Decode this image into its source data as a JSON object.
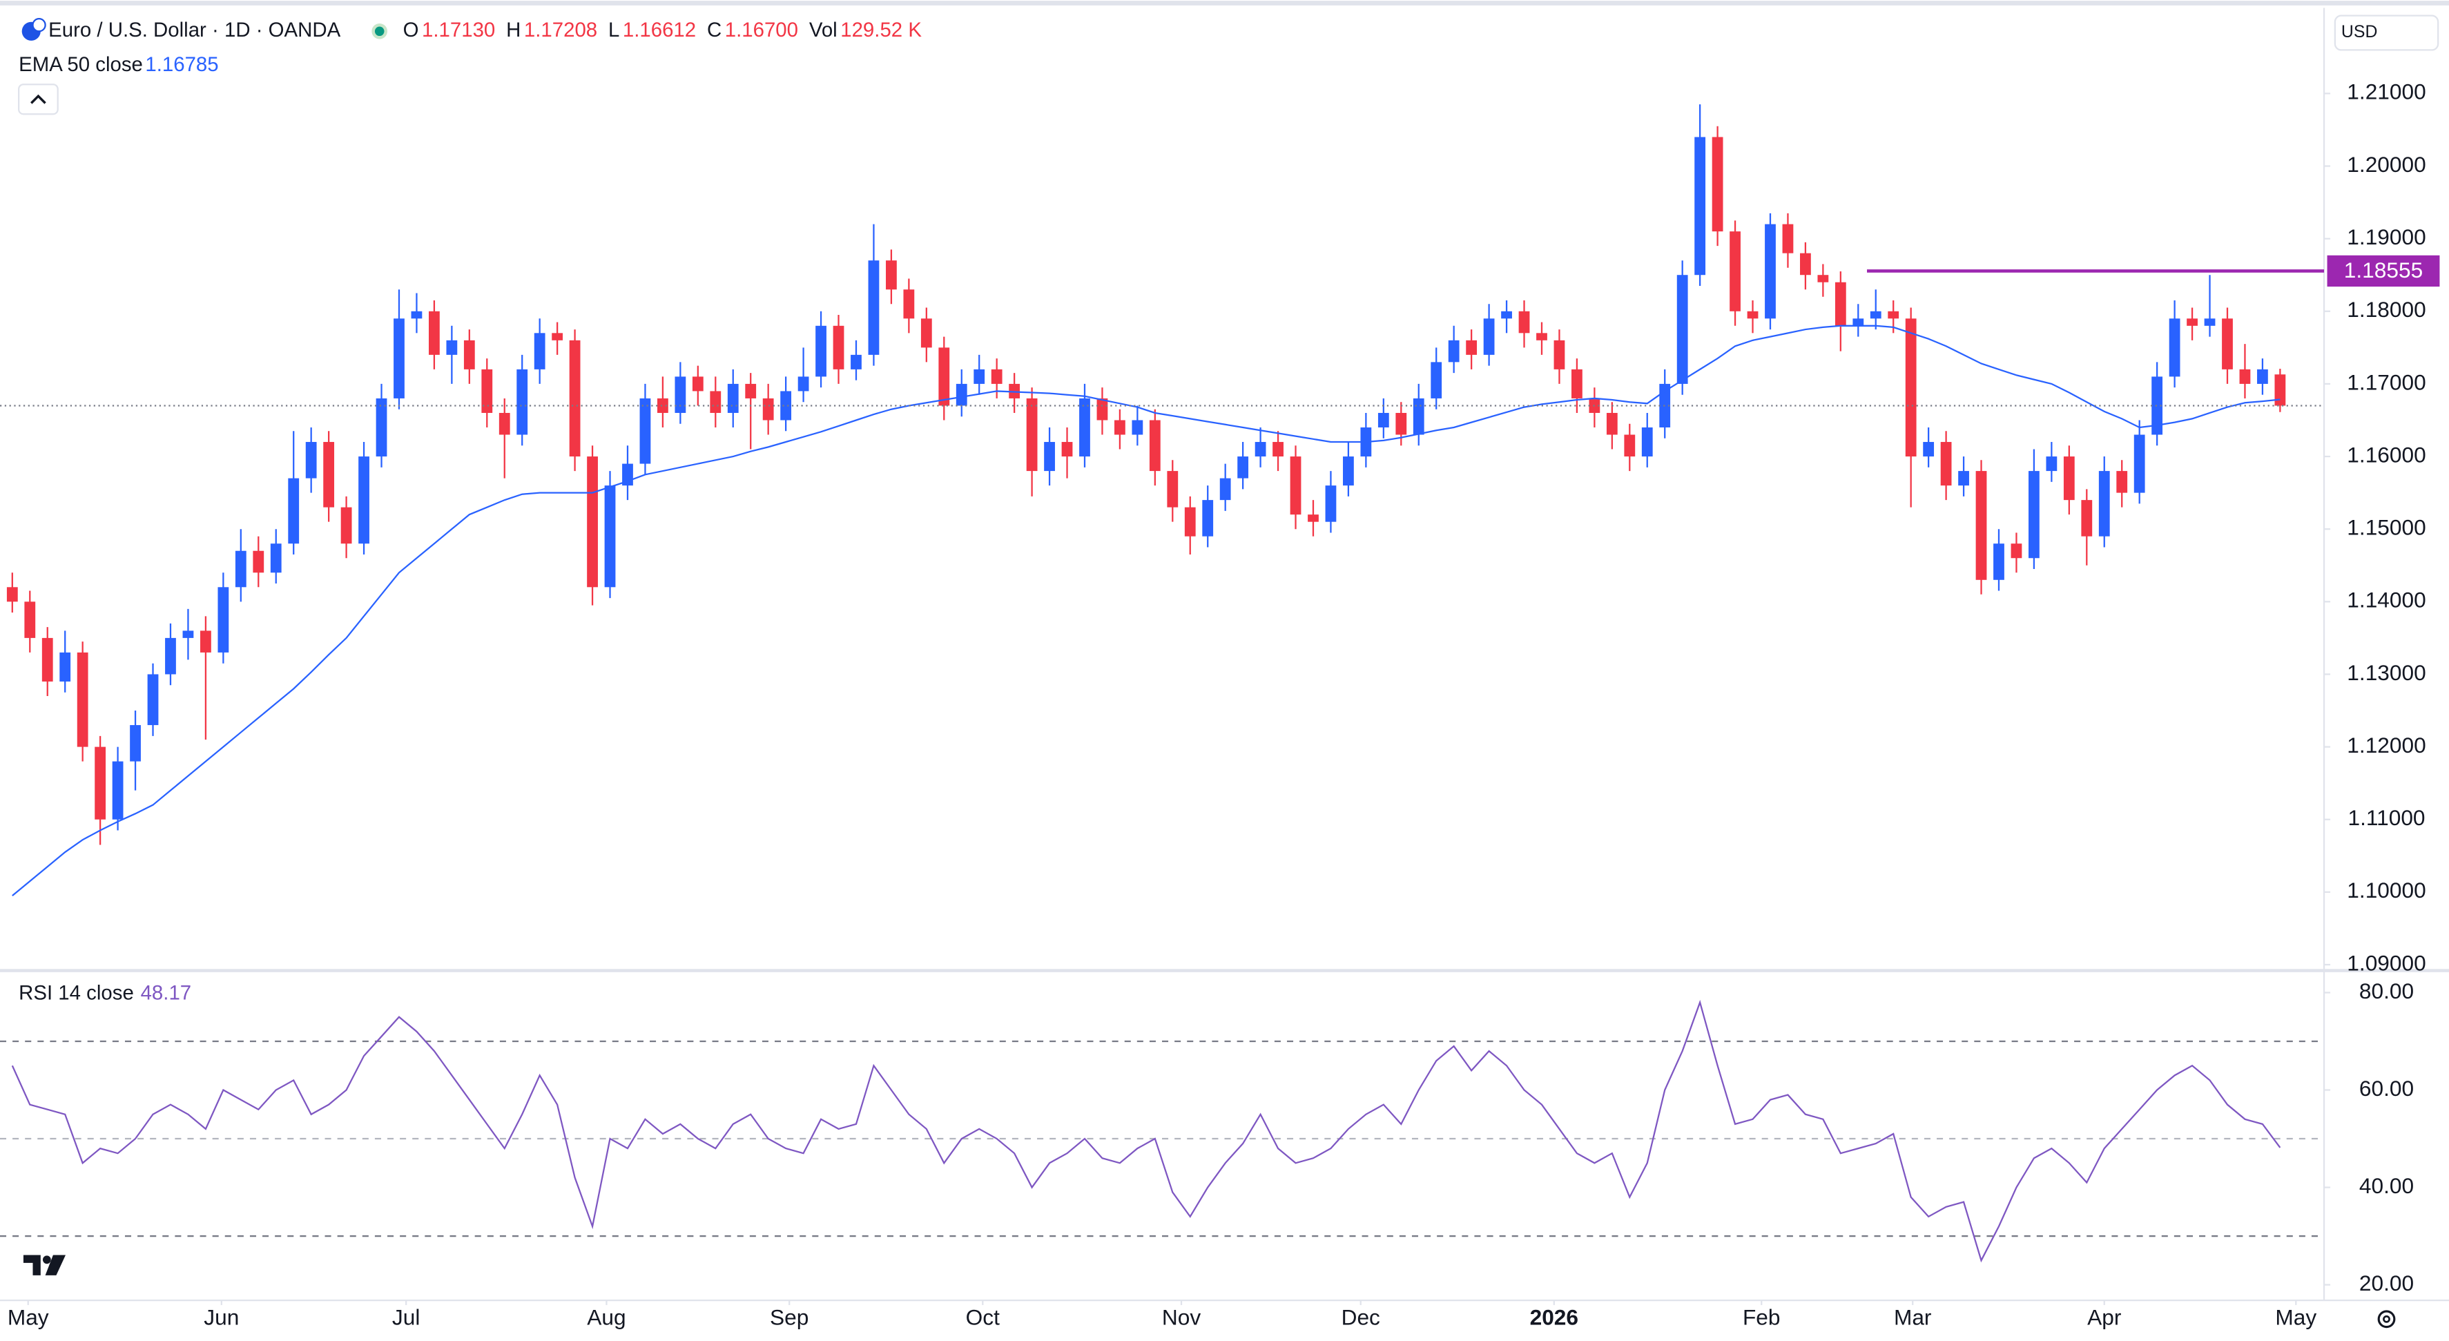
{
  "chart_data": [
    {
      "type": "candlestick",
      "title": "Euro / U.S. Dollar · 1D · OANDA",
      "fields": [
        {
          "label": "O",
          "value": "1.17130"
        },
        {
          "label": "H",
          "value": "1.17208"
        },
        {
          "label": "L",
          "value": "1.16612"
        },
        {
          "label": "C",
          "value": "1.16700"
        },
        {
          "label": "Vol",
          "value": "129.52 K"
        }
      ],
      "currency": "USD",
      "up_color": "#2962ff",
      "down_color": "#f23645",
      "open": [
        1.142,
        1.14,
        1.135,
        1.129,
        1.133,
        1.12,
        1.11,
        1.118,
        1.123,
        1.13,
        1.135,
        1.136,
        1.133,
        1.142,
        1.147,
        1.144,
        1.148,
        1.157,
        1.162,
        1.153,
        1.148,
        1.16,
        1.168,
        1.179,
        1.18,
        1.174,
        1.176,
        1.172,
        1.166,
        1.163,
        1.172,
        1.177,
        1.176,
        1.16,
        1.142,
        1.156,
        1.159,
        1.168,
        1.166,
        1.171,
        1.169,
        1.166,
        1.17,
        1.168,
        1.165,
        1.169,
        1.171,
        1.178,
        1.172,
        1.174,
        1.187,
        1.183,
        1.179,
        1.175,
        1.167,
        1.17,
        1.172,
        1.17,
        1.168,
        1.158,
        1.162,
        1.16,
        1.168,
        1.165,
        1.163,
        1.165,
        1.158,
        1.153,
        1.149,
        1.154,
        1.157,
        1.16,
        1.162,
        1.16,
        1.152,
        1.151,
        1.156,
        1.16,
        1.164,
        1.166,
        1.163,
        1.168,
        1.173,
        1.176,
        1.174,
        1.179,
        1.18,
        1.177,
        1.176,
        1.172,
        1.168,
        1.166,
        1.163,
        1.16,
        1.164,
        1.17,
        1.185,
        1.204,
        1.191,
        1.18,
        1.179,
        1.192,
        1.188,
        1.185,
        1.184,
        1.178,
        1.179,
        1.18,
        1.179,
        1.16,
        1.162,
        1.156,
        1.158,
        1.143,
        1.148,
        1.146,
        1.158,
        1.16,
        1.154,
        1.149,
        1.158,
        1.155,
        1.163,
        1.171,
        1.179,
        1.178,
        1.179,
        1.172,
        1.17,
        1.1713
      ],
      "high": [
        1.144,
        1.1415,
        1.1365,
        1.136,
        1.1345,
        1.1215,
        1.12,
        1.125,
        1.1315,
        1.137,
        1.139,
        1.138,
        1.144,
        1.15,
        1.149,
        1.15,
        1.1635,
        1.164,
        1.1635,
        1.1545,
        1.162,
        1.17,
        1.183,
        1.1825,
        1.1815,
        1.178,
        1.1775,
        1.1735,
        1.168,
        1.174,
        1.179,
        1.1785,
        1.1775,
        1.1615,
        1.158,
        1.1615,
        1.17,
        1.171,
        1.173,
        1.1725,
        1.171,
        1.172,
        1.1715,
        1.17,
        1.171,
        1.175,
        1.18,
        1.1795,
        1.176,
        1.192,
        1.1885,
        1.1845,
        1.1805,
        1.1765,
        1.172,
        1.174,
        1.1735,
        1.1715,
        1.1695,
        1.164,
        1.164,
        1.17,
        1.1695,
        1.1665,
        1.167,
        1.1665,
        1.1595,
        1.1545,
        1.156,
        1.159,
        1.162,
        1.164,
        1.1635,
        1.1615,
        1.154,
        1.158,
        1.162,
        1.166,
        1.168,
        1.1675,
        1.17,
        1.175,
        1.178,
        1.1775,
        1.181,
        1.1815,
        1.1815,
        1.1785,
        1.1775,
        1.1735,
        1.1695,
        1.1675,
        1.1645,
        1.166,
        1.172,
        1.187,
        1.2085,
        1.2055,
        1.1925,
        1.1815,
        1.1935,
        1.1935,
        1.1895,
        1.1865,
        1.1855,
        1.181,
        1.183,
        1.1815,
        1.1805,
        1.164,
        1.1635,
        1.16,
        1.1595,
        1.15,
        1.1495,
        1.161,
        1.162,
        1.1615,
        1.1555,
        1.16,
        1.1595,
        1.165,
        1.173,
        1.1815,
        1.1805,
        1.185,
        1.1805,
        1.1755,
        1.1735,
        1.17208
      ],
      "low": [
        1.1385,
        1.133,
        1.127,
        1.1275,
        1.118,
        1.1065,
        1.1085,
        1.114,
        1.1215,
        1.1285,
        1.132,
        1.121,
        1.1315,
        1.14,
        1.142,
        1.1425,
        1.1465,
        1.155,
        1.151,
        1.146,
        1.1465,
        1.1585,
        1.1665,
        1.177,
        1.172,
        1.17,
        1.17,
        1.164,
        1.157,
        1.1615,
        1.17,
        1.174,
        1.158,
        1.1395,
        1.1405,
        1.154,
        1.1575,
        1.164,
        1.1645,
        1.167,
        1.164,
        1.164,
        1.161,
        1.163,
        1.1635,
        1.1675,
        1.1695,
        1.17,
        1.1705,
        1.1725,
        1.181,
        1.177,
        1.173,
        1.165,
        1.1655,
        1.1685,
        1.168,
        1.166,
        1.1545,
        1.156,
        1.157,
        1.1585,
        1.163,
        1.161,
        1.1615,
        1.156,
        1.151,
        1.1465,
        1.1475,
        1.1525,
        1.1555,
        1.1585,
        1.158,
        1.15,
        1.149,
        1.1495,
        1.1545,
        1.1585,
        1.1625,
        1.1615,
        1.1615,
        1.1665,
        1.1715,
        1.172,
        1.1725,
        1.177,
        1.175,
        1.174,
        1.17,
        1.166,
        1.164,
        1.161,
        1.158,
        1.1585,
        1.1625,
        1.1685,
        1.1835,
        1.189,
        1.178,
        1.177,
        1.1775,
        1.186,
        1.183,
        1.182,
        1.1745,
        1.1765,
        1.1775,
        1.177,
        1.153,
        1.1585,
        1.154,
        1.1545,
        1.141,
        1.1415,
        1.144,
        1.1445,
        1.1565,
        1.152,
        1.145,
        1.1475,
        1.153,
        1.1535,
        1.1615,
        1.1695,
        1.176,
        1.1765,
        1.17,
        1.168,
        1.1685,
        1.16612
      ],
      "close": [
        1.14,
        1.135,
        1.129,
        1.133,
        1.12,
        1.11,
        1.118,
        1.123,
        1.13,
        1.135,
        1.136,
        1.133,
        1.142,
        1.147,
        1.144,
        1.148,
        1.157,
        1.162,
        1.153,
        1.148,
        1.16,
        1.168,
        1.179,
        1.18,
        1.174,
        1.176,
        1.172,
        1.166,
        1.163,
        1.172,
        1.177,
        1.176,
        1.16,
        1.142,
        1.156,
        1.159,
        1.168,
        1.166,
        1.171,
        1.169,
        1.166,
        1.17,
        1.168,
        1.165,
        1.169,
        1.171,
        1.178,
        1.172,
        1.174,
        1.187,
        1.183,
        1.179,
        1.175,
        1.167,
        1.17,
        1.172,
        1.17,
        1.168,
        1.158,
        1.162,
        1.16,
        1.168,
        1.165,
        1.163,
        1.165,
        1.158,
        1.153,
        1.149,
        1.154,
        1.157,
        1.16,
        1.162,
        1.16,
        1.152,
        1.151,
        1.156,
        1.16,
        1.164,
        1.166,
        1.163,
        1.168,
        1.173,
        1.176,
        1.174,
        1.179,
        1.18,
        1.177,
        1.176,
        1.172,
        1.168,
        1.166,
        1.163,
        1.16,
        1.164,
        1.17,
        1.185,
        1.204,
        1.191,
        1.18,
        1.179,
        1.192,
        1.188,
        1.185,
        1.184,
        1.178,
        1.179,
        1.18,
        1.179,
        1.16,
        1.162,
        1.156,
        1.158,
        1.143,
        1.148,
        1.146,
        1.158,
        1.16,
        1.154,
        1.149,
        1.158,
        1.155,
        1.163,
        1.171,
        1.179,
        1.178,
        1.179,
        1.172,
        1.17,
        1.172,
        1.167
      ],
      "overlays": [
        {
          "name": "EMA 50 close",
          "value_label": "1.16785",
          "color": "#2962ff",
          "values": [
            1.0995,
            1.1015,
            1.1035,
            1.1055,
            1.1072,
            1.1085,
            1.1097,
            1.1108,
            1.112,
            1.114,
            1.116,
            1.118,
            1.12,
            1.122,
            1.124,
            1.126,
            1.128,
            1.1303,
            1.1327,
            1.135,
            1.138,
            1.141,
            1.144,
            1.146,
            1.148,
            1.15,
            1.152,
            1.153,
            1.154,
            1.1548,
            1.155,
            1.155,
            1.155,
            1.155,
            1.1558,
            1.1566,
            1.1575,
            1.158,
            1.1585,
            1.159,
            1.1595,
            1.16,
            1.1607,
            1.1613,
            1.162,
            1.1627,
            1.1634,
            1.1642,
            1.165,
            1.1658,
            1.1665,
            1.167,
            1.1674,
            1.1678,
            1.1682,
            1.1686,
            1.169,
            1.1689,
            1.1688,
            1.1687,
            1.1685,
            1.1683,
            1.1678,
            1.1673,
            1.1668,
            1.166,
            1.1656,
            1.1652,
            1.1648,
            1.1644,
            1.164,
            1.1636,
            1.1632,
            1.1628,
            1.1624,
            1.162,
            1.162,
            1.162,
            1.1622,
            1.1626,
            1.1631,
            1.1636,
            1.164,
            1.1647,
            1.1654,
            1.1661,
            1.1668,
            1.1672,
            1.1675,
            1.1678,
            1.168,
            1.1678,
            1.1675,
            1.1673,
            1.169,
            1.1705,
            1.172,
            1.1735,
            1.1752,
            1.176,
            1.1765,
            1.177,
            1.1775,
            1.1778,
            1.178,
            1.178,
            1.178,
            1.1778,
            1.177,
            1.1762,
            1.1752,
            1.174,
            1.1728,
            1.172,
            1.1712,
            1.1706,
            1.17,
            1.1688,
            1.1675,
            1.1662,
            1.1652,
            1.164,
            1.1643,
            1.1647,
            1.1652,
            1.166,
            1.1668,
            1.1674,
            1.1676,
            1.16785
          ]
        }
      ],
      "level": {
        "value": 1.18555,
        "label": "1.18555",
        "color": "#9c27b0",
        "x_start": 105.5
      },
      "xlim": [
        -0.7,
        131.5
      ],
      "xticks": [
        {
          "value": 0.9,
          "label": "May"
        },
        {
          "value": 11.9,
          "label": "Jun"
        },
        {
          "value": 22.4,
          "label": "Jul"
        },
        {
          "value": 33.8,
          "label": "Aug"
        },
        {
          "value": 44.2,
          "label": "Sep"
        },
        {
          "value": 55.2,
          "label": "Oct"
        },
        {
          "value": 66.5,
          "label": "Nov"
        },
        {
          "value": 76.7,
          "label": "Dec"
        },
        {
          "value": 87.7,
          "label": "2026"
        },
        {
          "value": 99.5,
          "label": "Feb"
        },
        {
          "value": 108.1,
          "label": "Mar"
        },
        {
          "value": 119.0,
          "label": "Apr"
        },
        {
          "value": 129.9,
          "label": "May"
        }
      ],
      "ylim": [
        1.0894,
        1.2218
      ],
      "yticks": [
        {
          "value": 1.21,
          "label": "1.21000"
        },
        {
          "value": 1.2,
          "label": "1.20000"
        },
        {
          "value": 1.19,
          "label": "1.19000"
        },
        {
          "value": 1.18,
          "label": "1.18000"
        },
        {
          "value": 1.17,
          "label": "1.17000"
        },
        {
          "value": 1.16,
          "label": "1.16000"
        },
        {
          "value": 1.15,
          "label": "1.15000"
        },
        {
          "value": 1.14,
          "label": "1.14000"
        },
        {
          "value": 1.13,
          "label": "1.13000"
        },
        {
          "value": 1.12,
          "label": "1.12000"
        },
        {
          "value": 1.11,
          "label": "1.11000"
        },
        {
          "value": 1.1,
          "label": "1.10000"
        },
        {
          "value": 1.09,
          "label": "1.09000"
        }
      ]
    },
    {
      "type": "line",
      "name": "RSI 14 close",
      "value_label": "48.17",
      "color": "#7e57c2",
      "values": [
        65,
        57,
        56,
        55,
        45,
        48,
        47,
        50,
        55,
        57,
        55,
        52,
        60,
        58,
        56,
        60,
        62,
        55,
        57,
        60,
        67,
        71,
        75,
        72,
        68,
        63,
        58,
        53,
        48,
        55,
        63,
        57,
        42,
        32,
        50,
        48,
        54,
        51,
        53,
        50,
        48,
        53,
        55,
        50,
        48,
        47,
        54,
        52,
        53,
        65,
        60,
        55,
        52,
        45,
        50,
        52,
        50,
        47,
        40,
        45,
        47,
        50,
        46,
        45,
        48,
        50,
        39,
        34,
        40,
        45,
        49,
        55,
        48,
        45,
        46,
        48,
        52,
        55,
        57,
        53,
        60,
        66,
        69,
        64,
        68,
        65,
        60,
        57,
        52,
        47,
        45,
        47,
        38,
        45,
        60,
        68,
        78,
        65,
        53,
        54,
        58,
        59,
        55,
        54,
        47,
        48,
        49,
        51,
        38,
        34,
        36,
        37,
        25,
        32,
        40,
        46,
        48,
        45,
        41,
        48,
        52,
        56,
        60,
        63,
        65,
        62,
        57,
        54,
        53,
        48.17
      ],
      "bands": [
        70,
        50,
        30
      ],
      "ylim": [
        16.8,
        84.2
      ],
      "yticks": [
        {
          "value": 80,
          "label": "80.00"
        },
        {
          "value": 60,
          "label": "60.00"
        },
        {
          "value": 40,
          "label": "40.00"
        },
        {
          "value": 20,
          "label": "20.00"
        }
      ]
    }
  ]
}
